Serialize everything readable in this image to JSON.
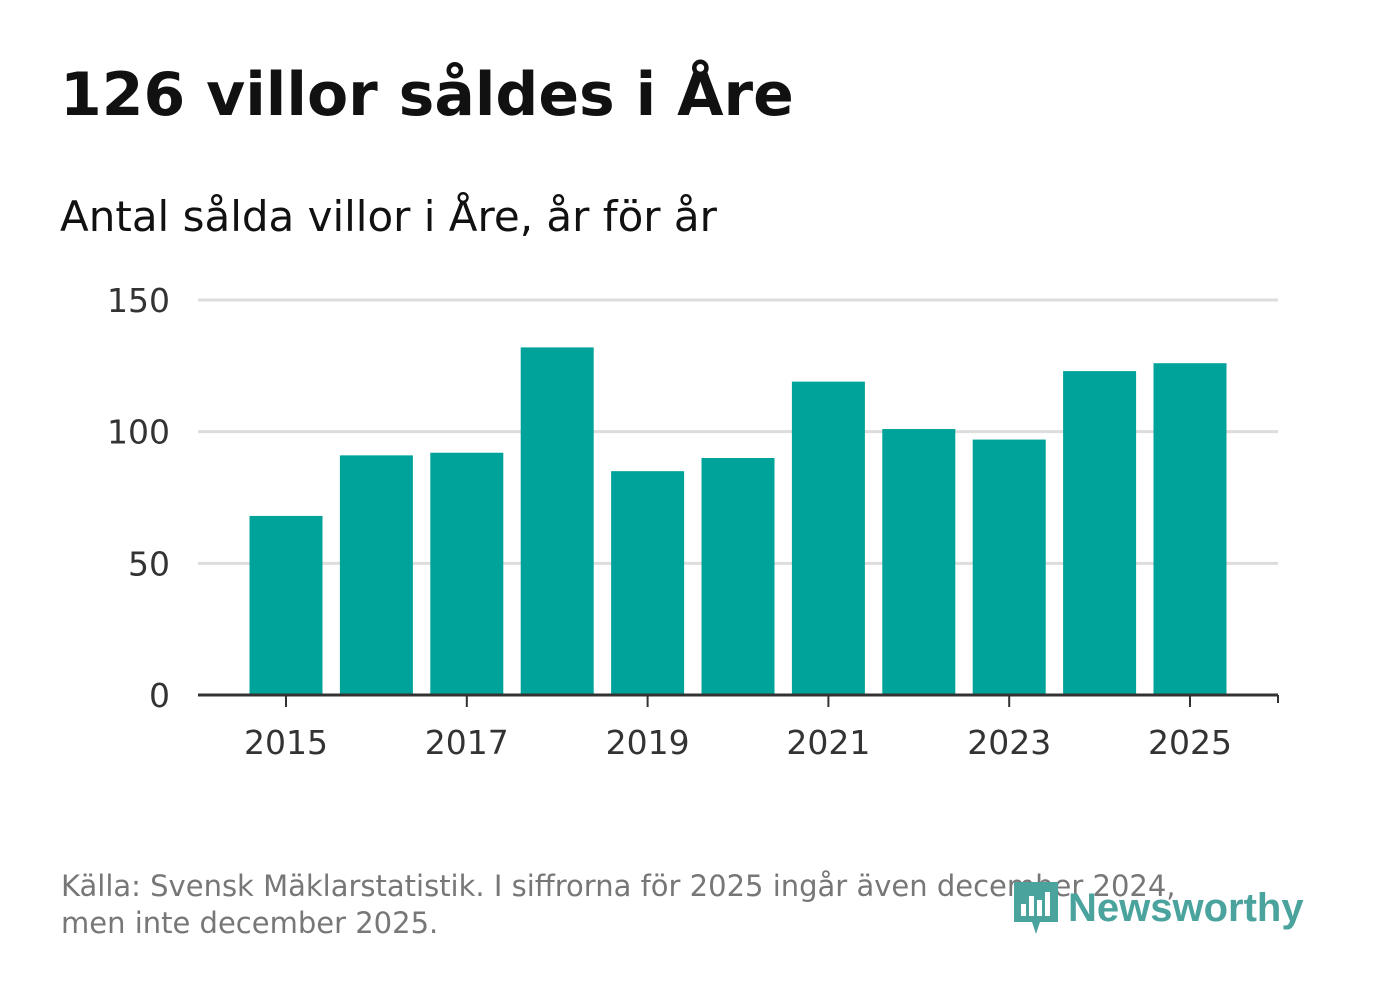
{
  "title": "126 villor såldes i Åre",
  "subtitle": "Antal sålda villor i Åre, år för år",
  "source_line1": "Källa: Svensk Mäklarstatistik. I siffrorna för 2025 ingår även december 2024,",
  "source_line2": "men inte december 2025.",
  "logo_text": "Newsworthy",
  "colors": {
    "bar": "#00a39a",
    "grid": "#dddddd",
    "axis": "#333333",
    "logo": "#4aa39c"
  },
  "chart_data": {
    "type": "bar",
    "title": "126 villor såldes i Åre",
    "subtitle": "Antal sålda villor i Åre, år för år",
    "xlabel": "",
    "ylabel": "",
    "categories": [
      "2015",
      "2016",
      "2017",
      "2018",
      "2019",
      "2020",
      "2021",
      "2022",
      "2023",
      "2024",
      "2025"
    ],
    "values": [
      68,
      91,
      92,
      132,
      85,
      90,
      119,
      101,
      97,
      123,
      126
    ],
    "ylim": [
      0,
      150
    ],
    "yticks": [
      0,
      50,
      100,
      150
    ],
    "xticks": [
      "2015",
      "2017",
      "2019",
      "2021",
      "2023",
      "2025"
    ],
    "grid": true
  }
}
